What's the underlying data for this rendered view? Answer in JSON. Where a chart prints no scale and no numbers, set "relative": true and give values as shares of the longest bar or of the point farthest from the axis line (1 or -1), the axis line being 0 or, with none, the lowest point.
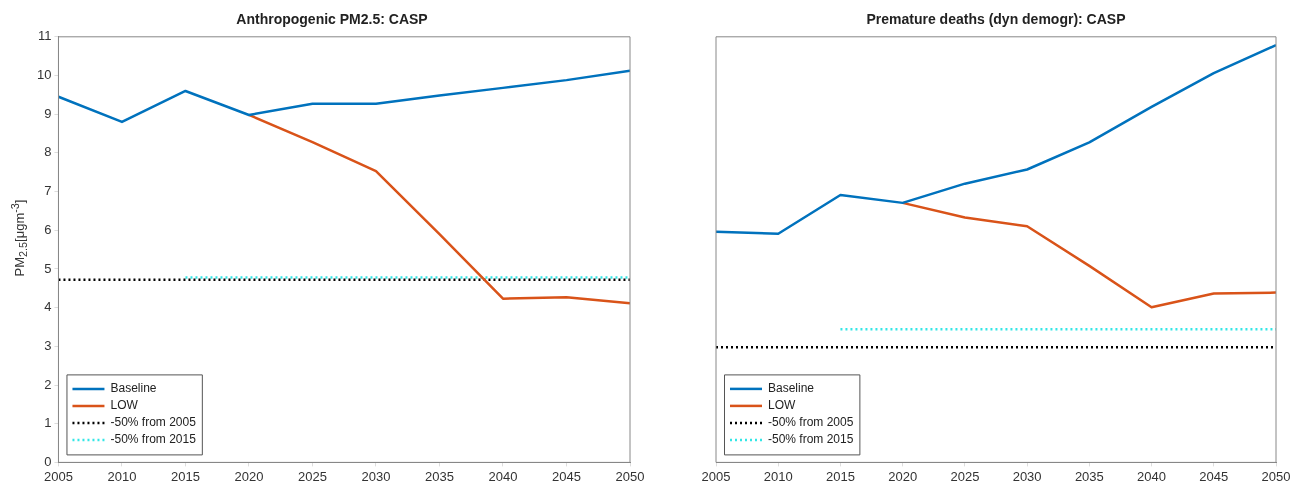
{
  "chart_data": [
    {
      "type": "line",
      "title": "Anthropogenic PM2.5: CASP",
      "ylabel": "PM$_{2.5}$[μgm$^{-3}$]",
      "x": [
        2005,
        2010,
        2015,
        2020,
        2025,
        2030,
        2035,
        2040,
        2045,
        2050
      ],
      "xlim": [
        2005,
        2050
      ],
      "xticks": [
        2005,
        2010,
        2015,
        2020,
        2025,
        2030,
        2035,
        2040,
        2045,
        2050
      ],
      "ylim": [
        0,
        11
      ],
      "yticks": [
        0,
        1,
        2,
        3,
        4,
        5,
        6,
        7,
        8,
        9,
        10,
        11
      ],
      "grid": false,
      "legend": "bottom left",
      "marker": "none",
      "series": [
        {
          "name": "Baseline",
          "color": "#0072bd",
          "line_style": "solid",
          "values": [
            9.45,
            8.8,
            9.6,
            8.98,
            9.27,
            9.27,
            9.48,
            9.68,
            9.88,
            10.12
          ]
        },
        {
          "name": "LOW",
          "color": "#d95319",
          "line_style": "solid",
          "values": [
            null,
            null,
            null,
            8.98,
            8.28,
            7.53,
            5.9,
            4.23,
            4.27,
            4.11
          ]
        },
        {
          "name": "-50% from 2005",
          "color": "#000000",
          "line_style": "dotted",
          "x": [
            2005,
            2050
          ],
          "values": [
            4.72,
            4.72
          ]
        },
        {
          "name": "-50% from 2015",
          "color": "#33e6e6",
          "line_style": "dotted",
          "x": [
            2015,
            2050
          ],
          "values": [
            4.78,
            4.78
          ]
        }
      ]
    },
    {
      "type": "line",
      "title": "Premature deaths (dyn demogr): CASP",
      "x": [
        2005,
        2010,
        2015,
        2020,
        2025,
        2030,
        2035,
        2040,
        2045,
        2050
      ],
      "xlim": [
        2005,
        2050
      ],
      "xticks": [
        2005,
        2010,
        2015,
        2020,
        2025,
        2030,
        2035,
        2040,
        2045,
        2050
      ],
      "relative": true,
      "grid": false,
      "legend": "bottom left",
      "marker": "none",
      "series": [
        {
          "name": "Baseline",
          "color": "#0072bd",
          "line_style": "solid",
          "values": [
            0.553,
            0.548,
            0.641,
            0.622,
            0.668,
            0.702,
            0.767,
            0.852,
            0.933,
            1
          ]
        },
        {
          "name": "LOW",
          "color": "#d95319",
          "line_style": "solid",
          "values": [
            null,
            null,
            null,
            0.622,
            0.587,
            0.566,
            0.471,
            0.372,
            0.405,
            0.407
          ]
        },
        {
          "name": "-50% from 2005",
          "color": "#000000",
          "line_style": "dotted",
          "x": [
            2005,
            2050
          ],
          "values": [
            0.276,
            0.276
          ]
        },
        {
          "name": "-50% from 2015",
          "color": "#33e6e6",
          "line_style": "dotted",
          "x": [
            2015,
            2050
          ],
          "values": [
            0.319,
            0.319
          ]
        }
      ]
    }
  ]
}
